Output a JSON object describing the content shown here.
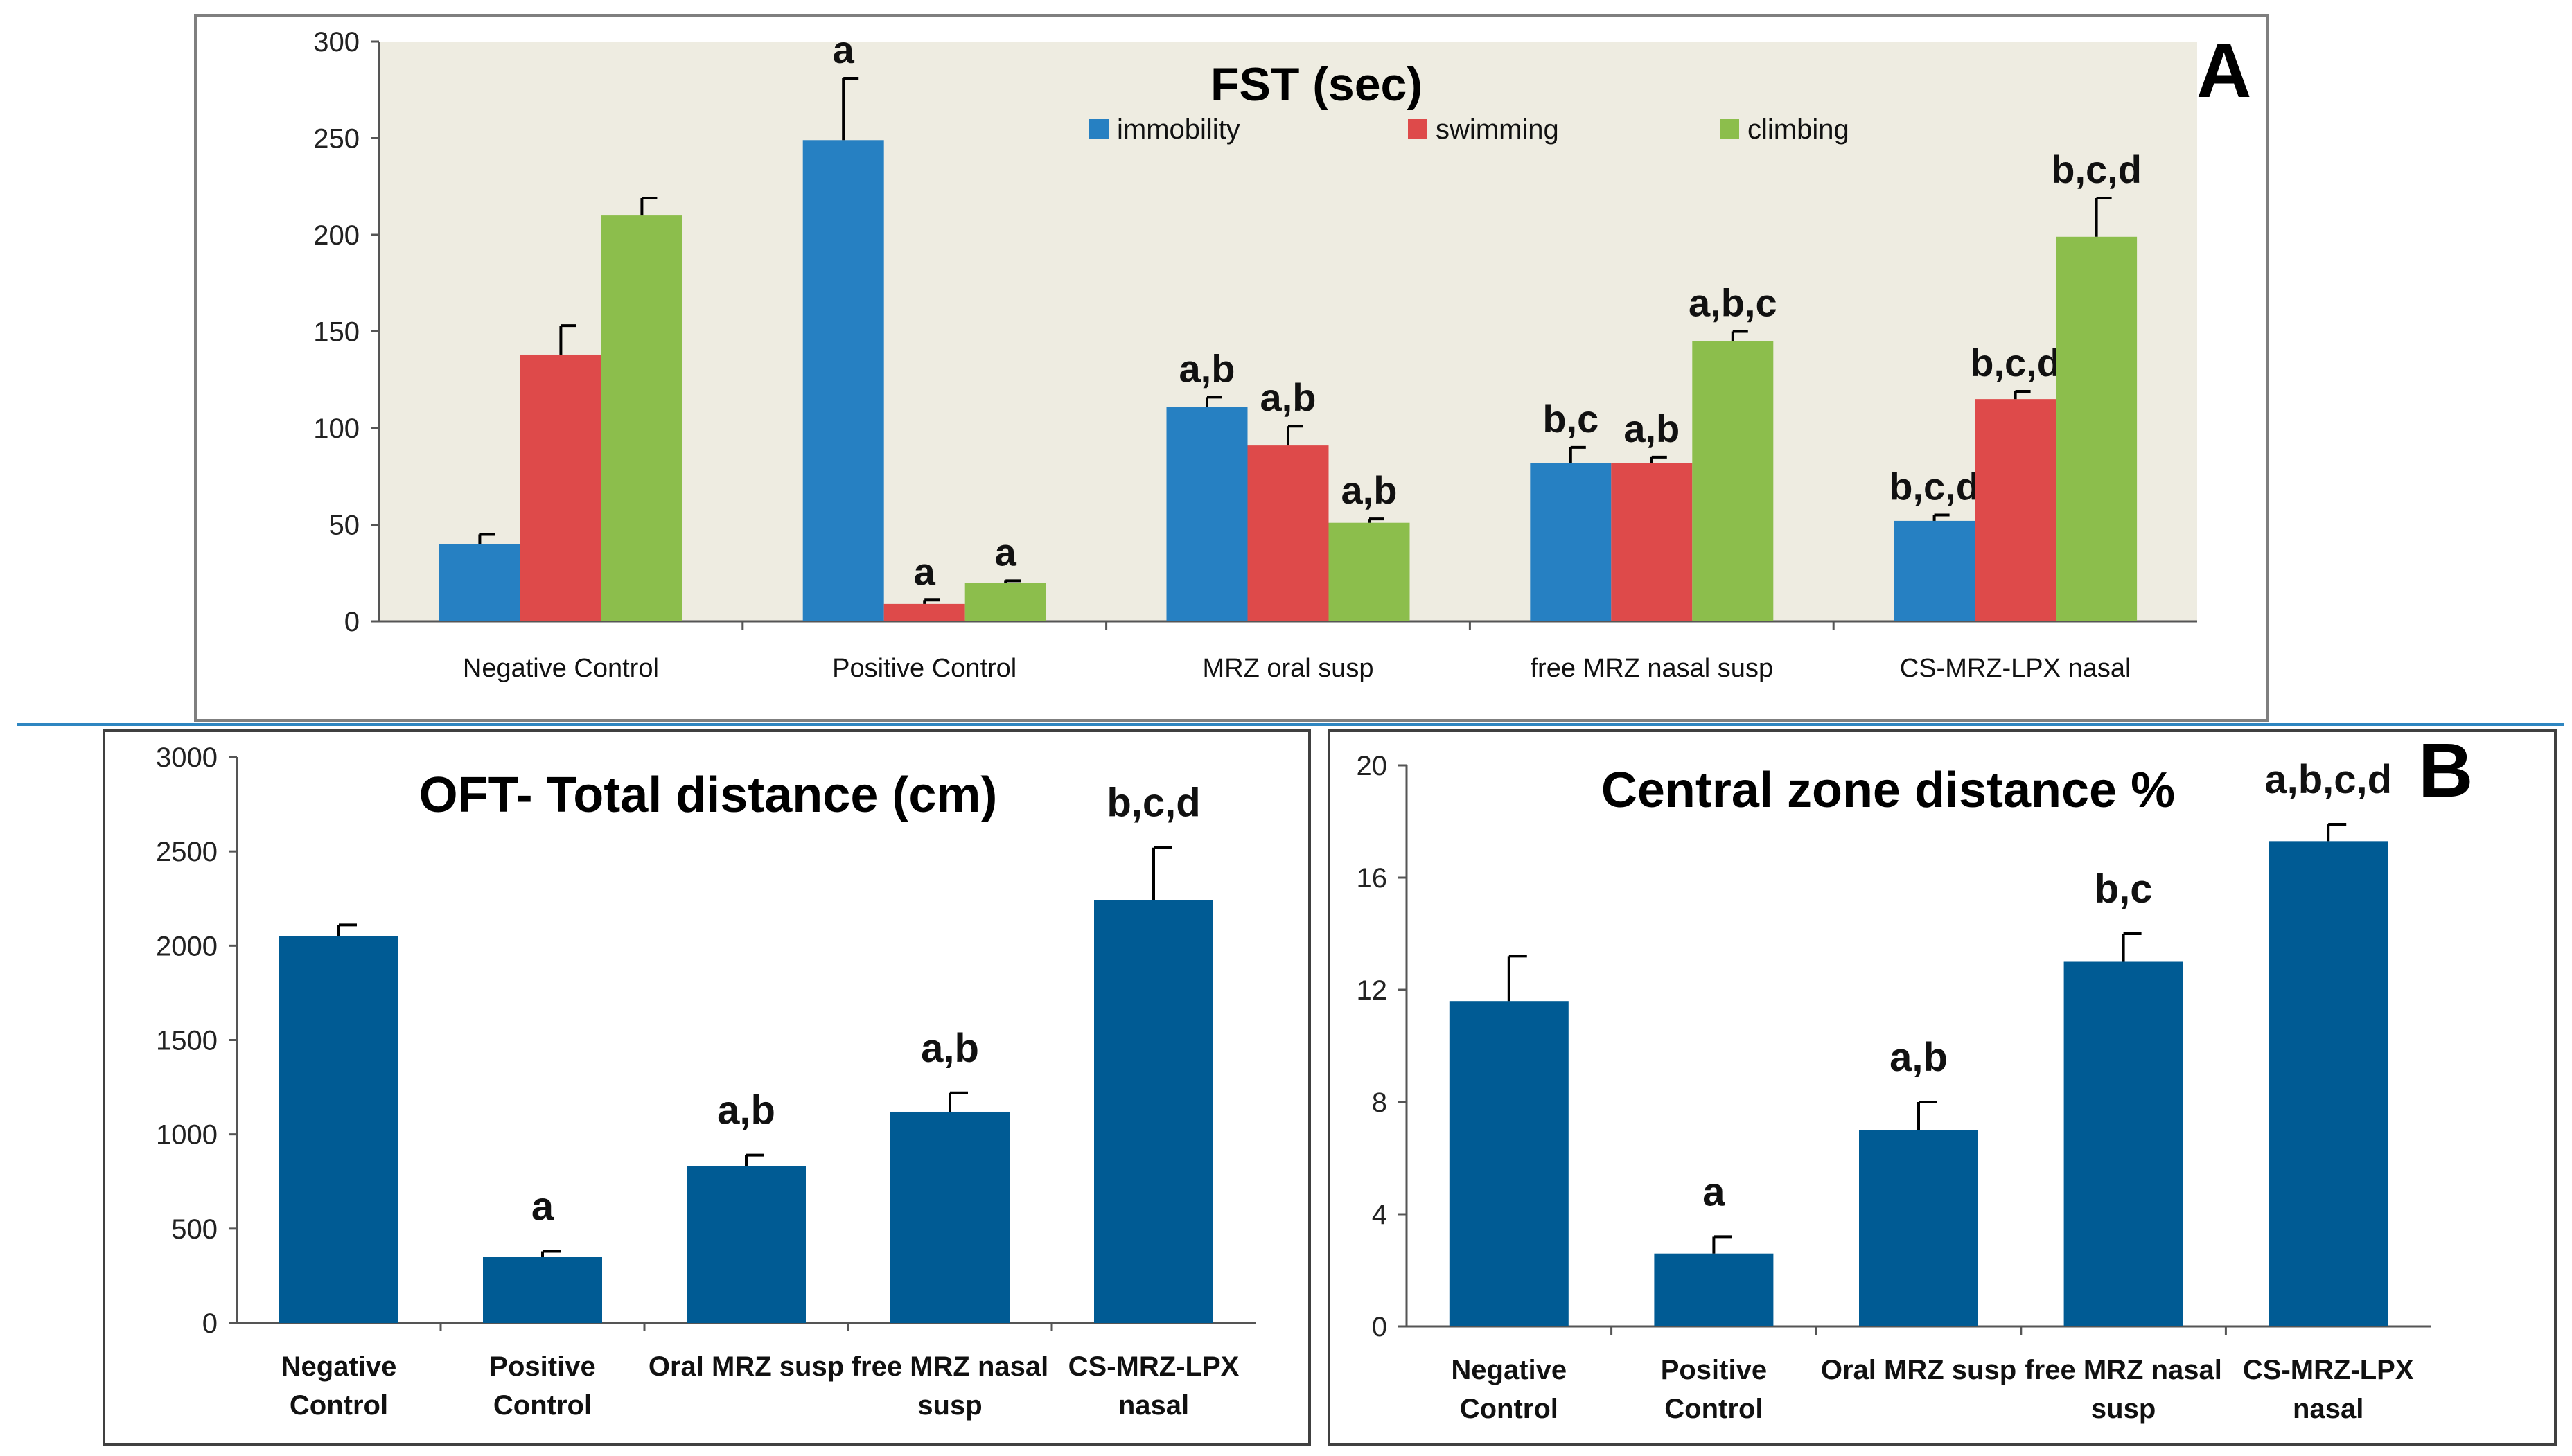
{
  "colors": {
    "immobility": "#2680C2",
    "swimming": "#DE4A4A",
    "climbing": "#8CBE4C",
    "single": "#005B94",
    "plot_bg_A": "#EEECE1",
    "divider": "#2E86C1"
  },
  "panel_letters": {
    "a": "A",
    "b": "B"
  },
  "chart_data": [
    {
      "id": "fst",
      "type": "bar",
      "title": "FST (sec)",
      "xlabel": "",
      "ylabel": "",
      "ylim": [
        0,
        300
      ],
      "yticks": [
        0,
        50,
        100,
        150,
        200,
        250,
        300
      ],
      "grid": false,
      "legend": "top-center",
      "categories": [
        "Negative Control",
        "Positive Control",
        "MRZ oral susp",
        "free MRZ nasal susp",
        "CS-MRZ-LPX nasal"
      ],
      "series": [
        {
          "name": "immobility",
          "values": [
            40,
            249,
            111,
            82,
            52
          ],
          "errors": [
            5,
            32,
            5,
            8,
            3
          ],
          "labels": [
            "",
            "a",
            "a,b",
            "b,c",
            "b,c,d"
          ]
        },
        {
          "name": "swimming",
          "values": [
            138,
            9,
            91,
            82,
            115
          ],
          "errors": [
            15,
            2,
            10,
            3,
            4
          ],
          "labels": [
            "",
            "a",
            "a,b",
            "a,b",
            "b,c,d"
          ]
        },
        {
          "name": "climbing",
          "values": [
            210,
            20,
            51,
            145,
            199
          ],
          "errors": [
            9,
            1,
            2,
            5,
            20
          ],
          "labels": [
            "",
            "a",
            "a,b",
            "a,b,c",
            "b,c,d"
          ]
        }
      ]
    },
    {
      "id": "oft",
      "type": "bar",
      "title": "OFT- Total distance (cm)",
      "xlabel": "",
      "ylabel": "",
      "ylim": [
        0,
        3000
      ],
      "yticks": [
        0,
        500,
        1000,
        1500,
        2000,
        2500,
        3000
      ],
      "grid": false,
      "legend": "none",
      "categories": [
        [
          "Negative",
          "Control"
        ],
        [
          "Positive",
          "Control"
        ],
        [
          "Oral MRZ susp"
        ],
        [
          "free MRZ nasal",
          "susp"
        ],
        [
          "CS-MRZ-LPX",
          "nasal"
        ]
      ],
      "values": [
        2050,
        350,
        830,
        1120,
        2240
      ],
      "errors": [
        60,
        30,
        60,
        100,
        280
      ],
      "labels": [
        "",
        "a",
        "a,b",
        "a,b",
        "b,c,d"
      ]
    },
    {
      "id": "czd",
      "type": "bar",
      "title": "Central zone distance %",
      "xlabel": "",
      "ylabel": "",
      "ylim": [
        0,
        20
      ],
      "yticks": [
        0,
        4,
        8,
        12,
        16,
        20
      ],
      "grid": false,
      "legend": "none",
      "categories": [
        [
          "Negative",
          "Control"
        ],
        [
          "Positive",
          "Control"
        ],
        [
          "Oral MRZ susp"
        ],
        [
          "free MRZ nasal",
          "susp"
        ],
        [
          "CS-MRZ-LPX",
          "nasal"
        ]
      ],
      "values": [
        11.6,
        2.6,
        7.0,
        13.0,
        17.3
      ],
      "errors": [
        1.6,
        0.6,
        1.0,
        1.0,
        0.6
      ],
      "labels": [
        "",
        "a",
        "a,b",
        "b,c",
        "a,b,c,d"
      ]
    }
  ]
}
